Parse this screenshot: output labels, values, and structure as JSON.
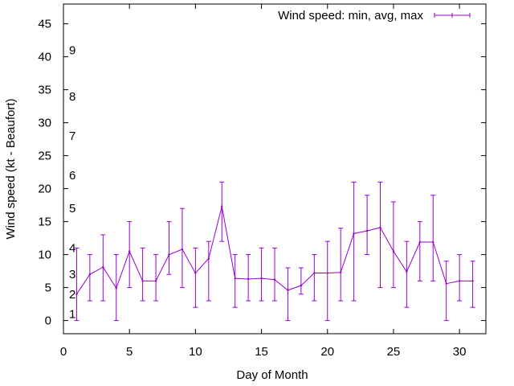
{
  "chart_data": {
    "type": "line",
    "title": "",
    "xlabel": "Day of Month",
    "ylabel": "Wind speed (kt - Beaufort)",
    "xlim": [
      0,
      32
    ],
    "ylim": [
      -2,
      48
    ],
    "x_ticks": [
      0,
      5,
      10,
      15,
      20,
      25,
      30
    ],
    "y_ticks": [
      0,
      5,
      10,
      15,
      20,
      25,
      30,
      35,
      40,
      45
    ],
    "beaufort_labels": [
      {
        "label": "1",
        "y": 1
      },
      {
        "label": "2",
        "y": 4
      },
      {
        "label": "3",
        "y": 7
      },
      {
        "label": "4",
        "y": 11
      },
      {
        "label": "5",
        "y": 17
      },
      {
        "label": "6",
        "y": 22
      },
      {
        "label": "7",
        "y": 28
      },
      {
        "label": "8",
        "y": 34
      },
      {
        "label": "9",
        "y": 41
      }
    ],
    "legend": {
      "label": "Wind speed: min, avg, max",
      "position": "top-right"
    },
    "colors": {
      "series": "#9400d3",
      "axis": "#000000"
    },
    "series": [
      {
        "name": "Wind speed: min, avg, max",
        "x": [
          1,
          2,
          3,
          4,
          5,
          6,
          7,
          8,
          9,
          10,
          11,
          12,
          13,
          14,
          15,
          16,
          17,
          18,
          19,
          20,
          21,
          22,
          23,
          24,
          25,
          26,
          27,
          28,
          29,
          30,
          31
        ],
        "avg": [
          4,
          7,
          8.1,
          4.9,
          10.5,
          6,
          6,
          10,
          10.8,
          7.2,
          9.4,
          17.3,
          6.4,
          6.3,
          6.4,
          6.2,
          4.6,
          5.3,
          7.2,
          7.2,
          7.3,
          13.2,
          13.6,
          14.1,
          10.5,
          7.4,
          11.9,
          11.9,
          5.6,
          6,
          6
        ],
        "min": [
          0,
          3,
          3,
          0,
          5,
          3,
          3,
          7,
          5,
          2,
          3,
          12,
          2,
          3,
          3,
          3,
          0,
          4,
          3,
          0,
          3,
          3,
          10,
          5,
          5,
          2,
          6,
          6,
          0,
          3,
          2
        ],
        "max": [
          11,
          10,
          13,
          10,
          15,
          11,
          10,
          15,
          17,
          11,
          12,
          21,
          10,
          10,
          11,
          11,
          8,
          8,
          10,
          12,
          14,
          21,
          19,
          21,
          18,
          12,
          15,
          19,
          9,
          10,
          9
        ]
      }
    ]
  }
}
